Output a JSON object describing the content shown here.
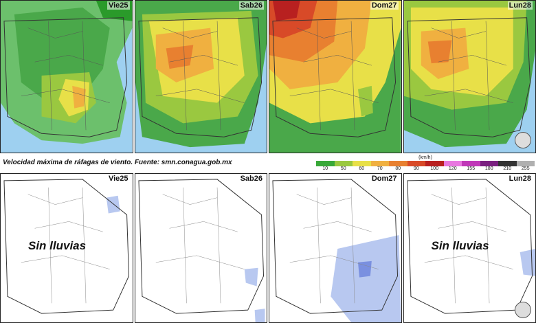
{
  "caption": "Velocidad máxima de ráfagas de viento.   Fuente: smn.conagua.gob.mx",
  "legend": {
    "unit": "(km/h)",
    "ticks": [
      "10",
      "50",
      "60",
      "70",
      "80",
      "90",
      "100",
      "120",
      "155",
      "180",
      "210",
      "255"
    ],
    "colors": [
      "#38a838",
      "#9ac840",
      "#e8e048",
      "#f0b040",
      "#e88030",
      "#d84a28",
      "#b82020",
      "#e878e0",
      "#c038b8",
      "#7a2080",
      "#333333",
      "#b0b0b0"
    ]
  },
  "top_panels": [
    {
      "day": "Vie25"
    },
    {
      "day": "Sab26"
    },
    {
      "day": "Dom27"
    },
    {
      "day": "Lun28"
    }
  ],
  "bottom_panels": [
    {
      "day": "Vie25",
      "note": "Sin lluvias"
    },
    {
      "day": "Sab26"
    },
    {
      "day": "Dom27"
    },
    {
      "day": "Lun28",
      "note": "Sin lluvias"
    }
  ],
  "colors": {
    "background": "#ffffff",
    "border": "#222222",
    "rain": "#b8c8f0"
  }
}
